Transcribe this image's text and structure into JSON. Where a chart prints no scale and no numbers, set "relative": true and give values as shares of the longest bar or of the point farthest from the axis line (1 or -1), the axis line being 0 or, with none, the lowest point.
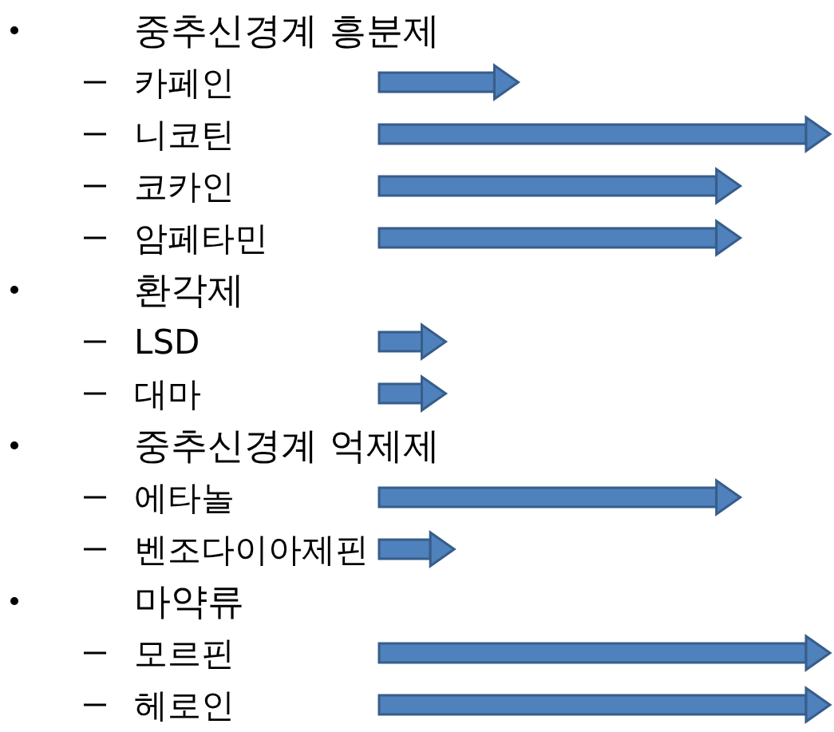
{
  "chart_data": {
    "type": "bar",
    "orientation": "horizontal",
    "relative": true,
    "color": "#4f81bd",
    "categories": [
      "중추신경계 흥분제",
      "카페인",
      "니코틴",
      "코카인",
      "암페타민",
      "환각제",
      "LSD",
      "대마",
      "중추신경계 억제제",
      "에타놀",
      "벤조다이아제핀",
      "마약류",
      "모르핀",
      "헤로인"
    ],
    "values": [
      null,
      0.27,
      1,
      0.79,
      0.79,
      null,
      0.1,
      0.1,
      null,
      0.79,
      0.12,
      null,
      1,
      1
    ]
  }
}
